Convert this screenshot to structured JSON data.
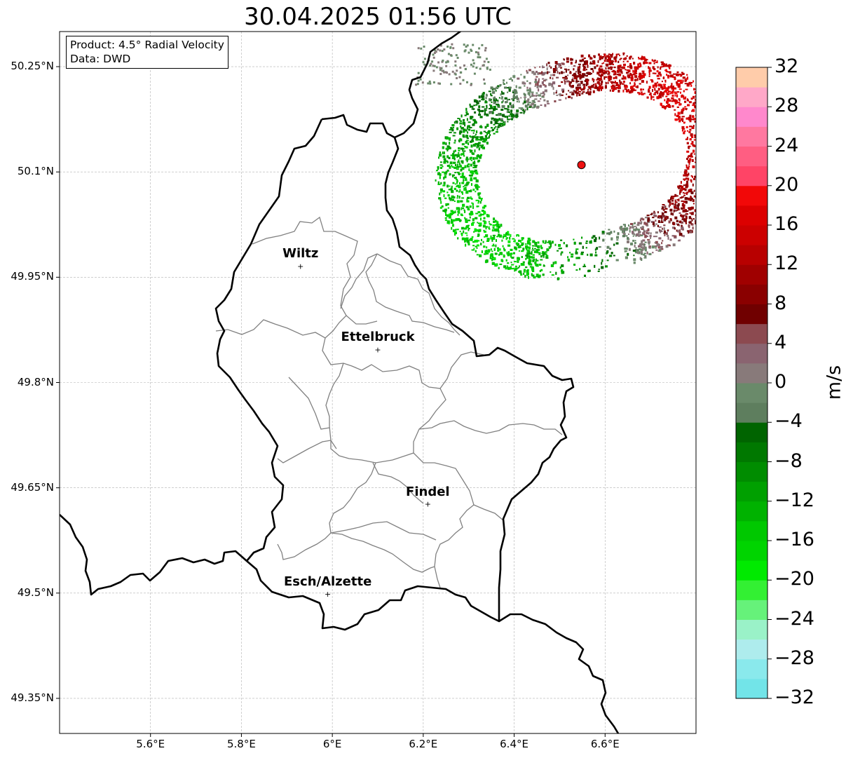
{
  "title": "30.04.2025 01:56 UTC",
  "info": {
    "product": "Product: 4.5° Radial Velocity",
    "data": "Data: DWD"
  },
  "map_extent": {
    "lon_min": 5.4,
    "lon_max": 6.8,
    "lat_min": 49.3,
    "lat_max": 50.3
  },
  "lat_ticks": [
    {
      "value": 50.25,
      "label": "50.25°N"
    },
    {
      "value": 50.1,
      "label": "50.1°N"
    },
    {
      "value": 49.95,
      "label": "49.95°N"
    },
    {
      "value": 49.8,
      "label": "49.8°N"
    },
    {
      "value": 49.65,
      "label": "49.65°N"
    },
    {
      "value": 49.5,
      "label": "49.5°N"
    },
    {
      "value": 49.35,
      "label": "49.35°N"
    }
  ],
  "lon_ticks": [
    {
      "value": 5.6,
      "label": "5.6°E"
    },
    {
      "value": 5.8,
      "label": "5.8°E"
    },
    {
      "value": 6.0,
      "label": "6°E"
    },
    {
      "value": 6.2,
      "label": "6.2°E"
    },
    {
      "value": 6.4,
      "label": "6.4°E"
    },
    {
      "value": 6.6,
      "label": "6.6°E"
    }
  ],
  "cities": [
    {
      "name": "Wiltz",
      "lon": 5.93,
      "lat": 49.966
    },
    {
      "name": "Ettelbruck",
      "lon": 6.1,
      "lat": 49.847
    },
    {
      "name": "Findel",
      "lon": 6.21,
      "lat": 49.627
    },
    {
      "name": "Esch/Alzette",
      "lon": 5.99,
      "lat": 49.499
    }
  ],
  "radar_site": {
    "lon": 6.548,
    "lat": 50.11,
    "color": "#ee1111"
  },
  "colorbar": {
    "unit": "m/s",
    "min": -32,
    "max": 32,
    "tick_labels": [
      "32",
      "28",
      "24",
      "20",
      "16",
      "12",
      "8",
      "4",
      "0",
      "−4",
      "−8",
      "−12",
      "−16",
      "−20",
      "−24",
      "−28",
      "−32"
    ],
    "colors": [
      "#72e4e8",
      "#8ae9ec",
      "#aeeced",
      "#9af2c8",
      "#66f27a",
      "#33f033",
      "#00ea00",
      "#00d400",
      "#00c800",
      "#00b200",
      "#00a000",
      "#008c00",
      "#007800",
      "#006400",
      "#5e7e5e",
      "#6a8a6a",
      "#887a7a",
      "#8a6470",
      "#8c4a50",
      "#700000",
      "#8a0000",
      "#a00000",
      "#b80000",
      "#cc0000",
      "#dc0000",
      "#f20808",
      "#ff4466",
      "#ff5e82",
      "#ff78a0",
      "#ff88cc",
      "#ffa8c8",
      "#ffccaa"
    ]
  }
}
